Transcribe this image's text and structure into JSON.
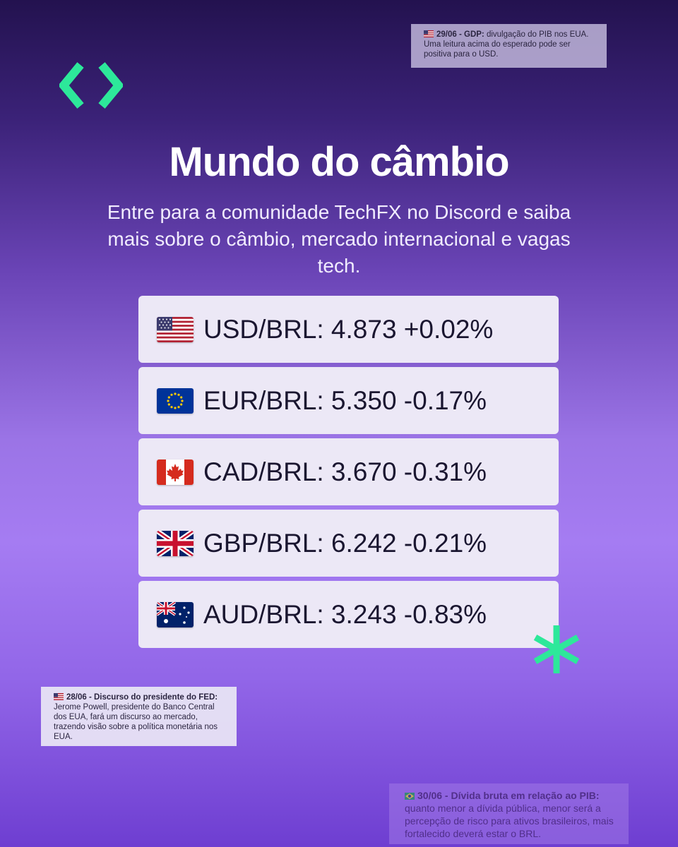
{
  "brand": {
    "logo_icon": "code-brackets-icon",
    "accent": "#2de89a"
  },
  "header": {
    "title": "Mundo do câmbio",
    "subtitle": "Entre para a comunidade TechFX no Discord e saiba mais sobre o câmbio, mercado internacional e vagas tech."
  },
  "rates": [
    {
      "flag": "us-flag-icon",
      "text": "USD/BRL: 4.873 +0.02%"
    },
    {
      "flag": "eu-flag-icon",
      "text": "EUR/BRL: 5.350 -0.17%"
    },
    {
      "flag": "ca-flag-icon",
      "text": "CAD/BRL: 3.670 -0.31%"
    },
    {
      "flag": "gb-flag-icon",
      "text": "GBP/BRL: 6.242 -0.21%"
    },
    {
      "flag": "au-flag-icon",
      "text": "AUD/BRL: 3.243 -0.83%"
    }
  ],
  "notes": {
    "top": {
      "flag": "us-flag-icon",
      "heading": "29/06 - GDP:",
      "body": "divulgação do PIB nos EUA. Uma leitura acima do esperado pode ser positiva para o USD."
    },
    "left": {
      "flag": "us-flag-icon",
      "heading": "28/06 - Discurso do presidente do FED:",
      "body": "Jerome Powell, presidente do Banco Central dos EUA, fará um discurso ao mercado, trazendo visão sobre a política monetária nos EUA."
    },
    "bottom": {
      "flag": "br-flag-icon",
      "heading": "30/06 - Dívida bruta em relação ao PIB:",
      "body": "quanto menor a dívida pública, menor será a percepção de risco para ativos brasileiros, mais fortalecido deverá estar o BRL."
    }
  },
  "decoration": {
    "asterisk_icon": "asterisk-icon"
  }
}
